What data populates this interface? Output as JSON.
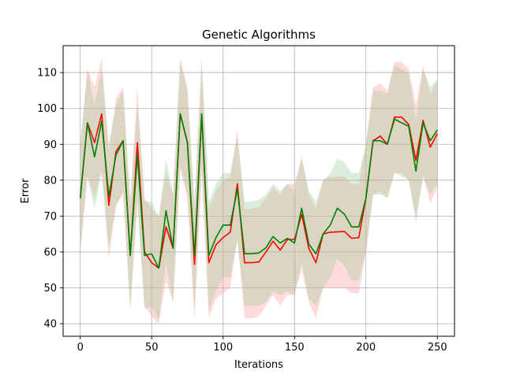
{
  "chart_data": {
    "type": "line",
    "title": "Genetic Algorithms",
    "xlabel": "Iterations",
    "ylabel": "Error",
    "xlim": [
      -12,
      262
    ],
    "ylim": [
      36.5,
      117.5
    ],
    "xticks": [
      0,
      50,
      100,
      150,
      200,
      250
    ],
    "yticks": [
      40,
      50,
      60,
      70,
      80,
      90,
      100,
      110
    ],
    "grid": true,
    "x": [
      0,
      5,
      10,
      15,
      20,
      25,
      30,
      35,
      40,
      45,
      50,
      55,
      60,
      65,
      70,
      75,
      80,
      85,
      90,
      95,
      100,
      105,
      110,
      115,
      120,
      125,
      130,
      135,
      140,
      145,
      150,
      155,
      160,
      165,
      170,
      175,
      180,
      185,
      190,
      195,
      200,
      205,
      210,
      215,
      220,
      225,
      230,
      235,
      240,
      245,
      250
    ],
    "series": [
      {
        "color": "#ff0000",
        "band_color": "#ff9999",
        "values": [
          75,
          96,
          90.5,
          98.5,
          73,
          88,
          91,
          59,
          90.5,
          60,
          57,
          55.5,
          67,
          61,
          98.5,
          90.5,
          56.5,
          98.5,
          57,
          62,
          64,
          65.5,
          79,
          57,
          57,
          57.2,
          60,
          63,
          60.5,
          63.5,
          63.5,
          70.5,
          61,
          57,
          65,
          65.5,
          65.6,
          65.7,
          63.8,
          64,
          75,
          91,
          92.3,
          90,
          97.6,
          97.6,
          95.5,
          85.5,
          96.7,
          89.2,
          93
        ],
        "upper": [
          90,
          111,
          106,
          114,
          88,
          103,
          106,
          74,
          106,
          75,
          72,
          70,
          82,
          76,
          114,
          106,
          72,
          114,
          72,
          77,
          80,
          81,
          94,
          72,
          72,
          72.5,
          75,
          78,
          76,
          79,
          79,
          86,
          76,
          72,
          80,
          81,
          81,
          81,
          79,
          79,
          90,
          106,
          107,
          105,
          113,
          113,
          111,
          101,
          112,
          104,
          108
        ],
        "lower": [
          60,
          81,
          75,
          83,
          58,
          73,
          76,
          44,
          75,
          45,
          42,
          40,
          52,
          46,
          83,
          75,
          41,
          83,
          41.5,
          47,
          48.5,
          50,
          64,
          41.5,
          41.5,
          42,
          45,
          48,
          45,
          48,
          48,
          55,
          46,
          41.5,
          50,
          50,
          50,
          50,
          48.5,
          48.5,
          60,
          76,
          77,
          75,
          82,
          82,
          80,
          70,
          81,
          73.5,
          78
        ]
      },
      {
        "color": "#008000",
        "band_color": "#99cc99",
        "values": [
          75,
          96,
          86.5,
          96.5,
          75.5,
          87,
          91,
          59,
          87,
          59,
          59.5,
          55.5,
          71.5,
          61,
          98.5,
          90.5,
          59,
          98.5,
          59,
          64,
          67.5,
          67.5,
          77.5,
          59.5,
          59.5,
          59.7,
          61.2,
          64.3,
          62.5,
          63.8,
          62.5,
          72.2,
          62.2,
          59.5,
          65,
          67.5,
          72.2,
          70.5,
          67,
          67,
          75,
          91,
          91,
          90,
          97,
          96,
          95,
          82.5,
          96,
          91,
          94
        ],
        "upper": [
          90,
          111,
          101,
          111,
          90,
          101,
          105,
          74,
          101,
          74,
          74,
          70,
          86,
          76,
          113,
          105,
          74,
          113,
          74,
          79,
          82,
          82,
          92,
          74,
          74,
          74.5,
          76,
          79,
          77,
          79,
          77,
          87,
          77,
          74,
          80,
          82,
          86,
          85,
          82,
          82,
          90,
          105,
          105,
          104,
          112,
          111,
          110,
          97,
          111,
          106,
          108
        ],
        "lower": [
          60,
          81,
          72,
          82,
          61,
          73,
          77,
          44,
          73,
          44,
          45,
          41,
          57,
          46,
          84,
          76,
          44,
          84,
          44,
          49,
          53,
          53,
          63,
          45,
          45,
          45,
          46,
          49,
          48,
          49,
          48,
          57,
          47,
          45,
          50,
          53,
          58,
          56,
          52,
          52,
          60,
          76,
          76,
          75,
          82,
          81,
          80,
          68,
          81,
          76,
          79
        ]
      }
    ]
  }
}
